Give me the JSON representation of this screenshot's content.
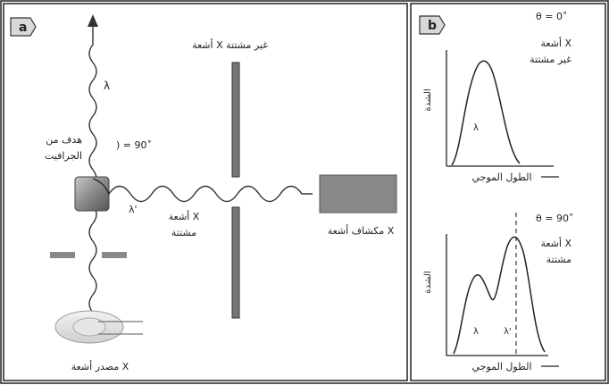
{
  "panel_a": {
    "tag": "a",
    "scattered_rays_label": "أشعة X غير مشتتة",
    "lambda_label": "λ",
    "target_label_line1": "هدف من",
    "target_label_line2": "الجرافيت",
    "angle_label": ") = 90˚",
    "lambda_prime_label": "λ'",
    "scattered_x_line1": "أشعة X",
    "scattered_x_line2": "مشتتة",
    "detector_label": "مكشاف أشعة X",
    "source_label": "مصدر أشعة X"
  },
  "panel_b": {
    "tag": "b",
    "top": {
      "theta_label": "θ = 0˚",
      "desc_line1": "أشعة X",
      "desc_line2": "غير مشتتة",
      "ylabel": "الشدة",
      "xlabel": "الطول الموجي",
      "peak_label": "λ"
    },
    "bottom": {
      "theta_label": "θ = 90˚",
      "desc_line1": "أشعة X",
      "desc_line2": "مشتتة",
      "ylabel": "الشدة",
      "xlabel": "الطول الموجي",
      "peak1_label": "λ",
      "peak2_label": "λ'"
    }
  }
}
